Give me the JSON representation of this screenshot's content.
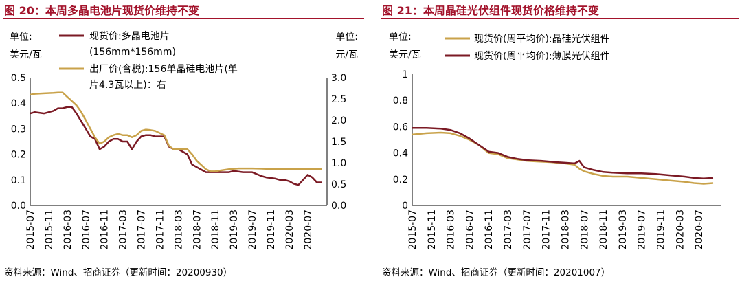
{
  "panels": [
    {
      "title": "图 20：本周多晶电池片现货价维持不变",
      "source": "资料来源：Wind、招商证券（更新时间：20200930）",
      "unit_left": [
        "单位:",
        "美元/瓦"
      ],
      "unit_right": [
        "单位:",
        "元/瓦"
      ]
    },
    {
      "title": "图 21：本周晶硅光伏组件现货价格维持不变",
      "source": "资料来源：Wind、招商证券（更新时间：20201007）",
      "unit_left": [
        "单位:",
        "美元/瓦"
      ]
    }
  ],
  "colors": {
    "title": "#a3132b",
    "dark_red": "#7b1a24",
    "gold": "#c9a24a"
  },
  "chart_data": [
    {
      "type": "line",
      "x_tick_labels": [
        "2015-07",
        "2015-11",
        "2016-03",
        "2016-07",
        "2016-11",
        "2017-03",
        "2017-07",
        "2017-11",
        "2018-03",
        "2018-07",
        "2018-11",
        "2019-03",
        "2019-07",
        "2019-11",
        "2020-03",
        "2020-07"
      ],
      "y_left": {
        "range": [
          0,
          0.5
        ],
        "ticks": [
          "0.0",
          "0.1",
          "0.2",
          "0.3",
          "0.4",
          "0.5"
        ]
      },
      "y_right": {
        "range": [
          0,
          3.0
        ],
        "ticks": [
          "0.0",
          "0.5",
          "1.0",
          "1.5",
          "2.0",
          "2.5",
          "3.0"
        ]
      },
      "legend": [
        "现货价:多晶电池片",
        "(156mm*156mm)",
        "出厂价(含税):156单晶硅电池片(单",
        "片4.3瓦以上)：右"
      ],
      "series": [
        {
          "name": "现货价:多晶电池片(156mm*156mm)",
          "axis": "left",
          "color": "#7b1a24",
          "points": [
            [
              "2015-07",
              0.36
            ],
            [
              "2015-08",
              0.365
            ],
            [
              "2015-10",
              0.36
            ],
            [
              "2015-12",
              0.37
            ],
            [
              "2016-01",
              0.38
            ],
            [
              "2016-02",
              0.38
            ],
            [
              "2016-03",
              0.385
            ],
            [
              "2016-04",
              0.385
            ],
            [
              "2016-05",
              0.36
            ],
            [
              "2016-06",
              0.33
            ],
            [
              "2016-07",
              0.3
            ],
            [
              "2016-08",
              0.27
            ],
            [
              "2016-09",
              0.26
            ],
            [
              "2016-10",
              0.22
            ],
            [
              "2016-11",
              0.23
            ],
            [
              "2016-12",
              0.25
            ],
            [
              "2017-01",
              0.26
            ],
            [
              "2017-02",
              0.26
            ],
            [
              "2017-03",
              0.25
            ],
            [
              "2017-04",
              0.25
            ],
            [
              "2017-05",
              0.22
            ],
            [
              "2017-06",
              0.25
            ],
            [
              "2017-07",
              0.27
            ],
            [
              "2017-08",
              0.275
            ],
            [
              "2017-09",
              0.275
            ],
            [
              "2017-10",
              0.27
            ],
            [
              "2017-11",
              0.27
            ],
            [
              "2017-12",
              0.27
            ],
            [
              "2018-01",
              0.23
            ],
            [
              "2018-02",
              0.22
            ],
            [
              "2018-03",
              0.22
            ],
            [
              "2018-04",
              0.21
            ],
            [
              "2018-05",
              0.2
            ],
            [
              "2018-06",
              0.16
            ],
            [
              "2018-07",
              0.15
            ],
            [
              "2018-08",
              0.14
            ],
            [
              "2018-09",
              0.13
            ],
            [
              "2018-10",
              0.13
            ],
            [
              "2018-12",
              0.13
            ],
            [
              "2019-02",
              0.13
            ],
            [
              "2019-03",
              0.135
            ],
            [
              "2019-05",
              0.13
            ],
            [
              "2019-07",
              0.13
            ],
            [
              "2019-09",
              0.115
            ],
            [
              "2019-10",
              0.11
            ],
            [
              "2019-12",
              0.105
            ],
            [
              "2020-01",
              0.1
            ],
            [
              "2020-02",
              0.1
            ],
            [
              "2020-03",
              0.095
            ],
            [
              "2020-04",
              0.085
            ],
            [
              "2020-05",
              0.08
            ],
            [
              "2020-06",
              0.1
            ],
            [
              "2020-07",
              0.12
            ],
            [
              "2020-08",
              0.11
            ],
            [
              "2020-09",
              0.09
            ],
            [
              "2020-10",
              0.09
            ]
          ]
        },
        {
          "name": "出厂价(含税):156单晶硅电池片(单片4.3瓦以上)",
          "axis": "right",
          "color": "#c9a24a",
          "points": [
            [
              "2015-07",
              2.6
            ],
            [
              "2015-08",
              2.62
            ],
            [
              "2015-10",
              2.63
            ],
            [
              "2015-12",
              2.64
            ],
            [
              "2016-01",
              2.65
            ],
            [
              "2016-02",
              2.65
            ],
            [
              "2016-03",
              2.55
            ],
            [
              "2016-04",
              2.45
            ],
            [
              "2016-05",
              2.35
            ],
            [
              "2016-06",
              2.2
            ],
            [
              "2016-07",
              2.0
            ],
            [
              "2016-08",
              1.8
            ],
            [
              "2016-09",
              1.6
            ],
            [
              "2016-10",
              1.45
            ],
            [
              "2016-11",
              1.5
            ],
            [
              "2016-12",
              1.6
            ],
            [
              "2017-01",
              1.65
            ],
            [
              "2017-02",
              1.68
            ],
            [
              "2017-03",
              1.65
            ],
            [
              "2017-04",
              1.65
            ],
            [
              "2017-05",
              1.6
            ],
            [
              "2017-06",
              1.65
            ],
            [
              "2017-07",
              1.75
            ],
            [
              "2017-08",
              1.78
            ],
            [
              "2017-09",
              1.77
            ],
            [
              "2017-10",
              1.75
            ],
            [
              "2017-11",
              1.7
            ],
            [
              "2017-12",
              1.65
            ],
            [
              "2018-01",
              1.4
            ],
            [
              "2018-02",
              1.32
            ],
            [
              "2018-03",
              1.32
            ],
            [
              "2018-05",
              1.32
            ],
            [
              "2018-06",
              1.2
            ],
            [
              "2018-07",
              1.05
            ],
            [
              "2018-08",
              0.95
            ],
            [
              "2018-09",
              0.85
            ],
            [
              "2018-10",
              0.8
            ],
            [
              "2018-11",
              0.8
            ],
            [
              "2018-12",
              0.82
            ],
            [
              "2019-02",
              0.85
            ],
            [
              "2019-04",
              0.87
            ],
            [
              "2019-07",
              0.87
            ],
            [
              "2019-10",
              0.86
            ],
            [
              "2020-01",
              0.86
            ],
            [
              "2020-04",
              0.86
            ],
            [
              "2020-07",
              0.86
            ],
            [
              "2020-10",
              0.86
            ]
          ]
        }
      ]
    },
    {
      "type": "line",
      "x_tick_labels": [
        "2015-07",
        "2015-11",
        "2016-03",
        "2016-07",
        "2016-11",
        "2017-03",
        "2017-07",
        "2017-11",
        "2018-03",
        "2018-07",
        "2018-11",
        "2019-03",
        "2019-07",
        "2019-11",
        "2020-03",
        "2020-07"
      ],
      "y_left": {
        "range": [
          0,
          1
        ],
        "ticks": [
          "0",
          "0.2",
          "0.4",
          "0.6",
          "0.8",
          "1"
        ]
      },
      "legend": [
        "现货价(周平均价):晶硅光伏组件",
        "现货价(周平均价):薄膜光伏组件"
      ],
      "series": [
        {
          "name": "现货价(周平均价):晶硅光伏组件",
          "axis": "left",
          "color": "#c9a24a",
          "points": [
            [
              "2015-07",
              0.54
            ],
            [
              "2015-10",
              0.55
            ],
            [
              "2016-01",
              0.555
            ],
            [
              "2016-03",
              0.55
            ],
            [
              "2016-05",
              0.53
            ],
            [
              "2016-07",
              0.5
            ],
            [
              "2016-09",
              0.46
            ],
            [
              "2016-11",
              0.4
            ],
            [
              "2017-01",
              0.39
            ],
            [
              "2017-03",
              0.36
            ],
            [
              "2017-05",
              0.35
            ],
            [
              "2017-07",
              0.34
            ],
            [
              "2017-09",
              0.335
            ],
            [
              "2017-12",
              0.33
            ],
            [
              "2018-03",
              0.32
            ],
            [
              "2018-05",
              0.31
            ],
            [
              "2018-06",
              0.28
            ],
            [
              "2018-07",
              0.26
            ],
            [
              "2018-09",
              0.24
            ],
            [
              "2018-11",
              0.225
            ],
            [
              "2019-01",
              0.22
            ],
            [
              "2019-04",
              0.22
            ],
            [
              "2019-07",
              0.21
            ],
            [
              "2019-10",
              0.2
            ],
            [
              "2020-01",
              0.19
            ],
            [
              "2020-04",
              0.18
            ],
            [
              "2020-06",
              0.17
            ],
            [
              "2020-08",
              0.165
            ],
            [
              "2020-10",
              0.17
            ]
          ]
        },
        {
          "name": "现货价(周平均价):薄膜光伏组件",
          "axis": "left",
          "color": "#7b1a24",
          "points": [
            [
              "2015-07",
              0.59
            ],
            [
              "2015-10",
              0.59
            ],
            [
              "2016-01",
              0.585
            ],
            [
              "2016-03",
              0.575
            ],
            [
              "2016-05",
              0.55
            ],
            [
              "2016-07",
              0.51
            ],
            [
              "2016-09",
              0.46
            ],
            [
              "2016-11",
              0.41
            ],
            [
              "2017-01",
              0.4
            ],
            [
              "2017-03",
              0.37
            ],
            [
              "2017-05",
              0.355
            ],
            [
              "2017-07",
              0.345
            ],
            [
              "2017-10",
              0.34
            ],
            [
              "2018-01",
              0.33
            ],
            [
              "2018-03",
              0.325
            ],
            [
              "2018-05",
              0.32
            ],
            [
              "2018-06",
              0.34
            ],
            [
              "2018-07",
              0.29
            ],
            [
              "2018-09",
              0.27
            ],
            [
              "2018-11",
              0.255
            ],
            [
              "2019-01",
              0.25
            ],
            [
              "2019-04",
              0.245
            ],
            [
              "2019-07",
              0.245
            ],
            [
              "2019-10",
              0.24
            ],
            [
              "2020-01",
              0.23
            ],
            [
              "2020-04",
              0.22
            ],
            [
              "2020-06",
              0.21
            ],
            [
              "2020-08",
              0.205
            ],
            [
              "2020-10",
              0.21
            ]
          ]
        }
      ]
    }
  ]
}
